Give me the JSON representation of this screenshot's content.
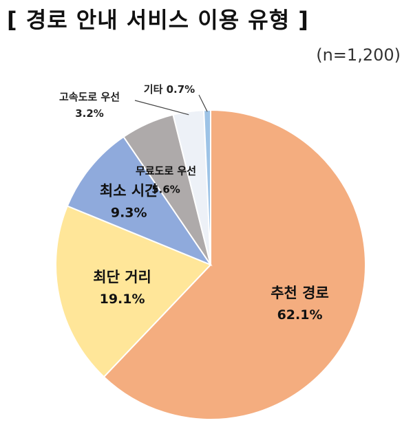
{
  "title": "[ 경로 안내 서비스 이용 유형 ]",
  "sample_size": "(n=1,200)",
  "chart_data": {
    "type": "pie",
    "title": "[ 경로 안내 서비스 이용 유형 ]",
    "subtitle": "(n=1,200)",
    "slices": [
      {
        "label": "추천 경로",
        "value": 62.1,
        "value_label": "62.1%",
        "color": "#F4AD7F"
      },
      {
        "label": "최단 거리",
        "value": 19.1,
        "value_label": "19.1%",
        "color": "#FFE699"
      },
      {
        "label": "최소 시간",
        "value": 9.3,
        "value_label": "9.3%",
        "color": "#8FAADC"
      },
      {
        "label": "무료도로 우선",
        "value": 5.6,
        "value_label": "5.6%",
        "color": "#AEAAAA"
      },
      {
        "label": "고속도로 우선",
        "value": 3.2,
        "value_label": "3.2%",
        "color": "#EDF1F7"
      },
      {
        "label": "기타",
        "value": 0.7,
        "value_label": "0.7%",
        "color": "#9DC3E6"
      }
    ],
    "start": "12 o'clock",
    "direction": "clockwise",
    "legend": "none"
  }
}
